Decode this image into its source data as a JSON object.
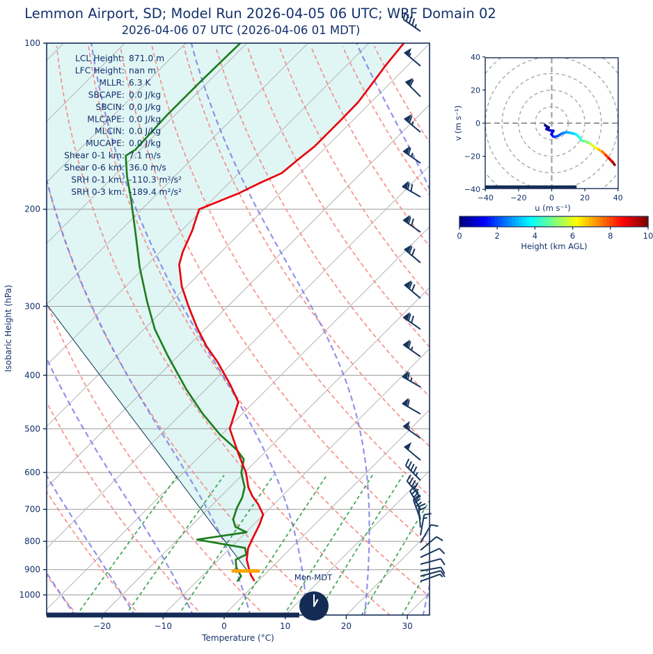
{
  "header": {
    "title": "Lemmon Airport, SD; Model Run 2026-04-05 06 UTC; WRF Domain 02",
    "subtitle": "2026-04-06 07 UTC  (2026-04-06 01 MDT)"
  },
  "colors": {
    "navy": "#142c55",
    "text_navy": "#13306b",
    "temperature": "#e8000b",
    "dewpoint": "#1e7d1e",
    "parcel": "#1f3d63",
    "fill_cyan": "#e0f6f5",
    "isotherm_gray": "#b3b3b3",
    "grid_gray": "#999999",
    "dry_adiabat": "#f5827d",
    "moist_adiabat": "#7577e3",
    "mixing_ratio": "#2f9e44",
    "lcl_bar_orange": "#ffa500",
    "barb_navy": "#16355d"
  },
  "skewt": {
    "xlabel": "Temperature (°C)",
    "ylabel": "Isobaric Height (hPa)",
    "x_ticks": [
      -20,
      -10,
      0,
      10,
      20,
      30
    ],
    "y_ticks": [
      100,
      200,
      300,
      400,
      500,
      600,
      700,
      800,
      900,
      1000
    ],
    "stats": [
      {
        "label": "LCL Height",
        "value": "871.0 m"
      },
      {
        "label": "LFC Height",
        "value": "nan m"
      },
      {
        "label": "MLLR",
        "value": "6.3 K"
      },
      {
        "label": "SBCAPE",
        "value": "0.0 J/kg"
      },
      {
        "label": "SBCIN",
        "value": "0.0 J/kg"
      },
      {
        "label": "MLCAPE",
        "value": "0.0 J/kg"
      },
      {
        "label": "MLCIN",
        "value": "0.0 J/kg"
      },
      {
        "label": "MUCAPE",
        "value": "0.0 J/kg"
      },
      {
        "label": "Shear 0-1 km",
        "value": "7.1 m/s"
      },
      {
        "label": "Shear 0-6 km",
        "value": "36.0 m/s"
      },
      {
        "label": "SRH 0-1 km",
        "value": "-110.3 m²/s²"
      },
      {
        "label": "SRH 0-3 km",
        "value": "-189.4 m²/s²"
      }
    ],
    "surface_bar": {
      "t_end": 12.3
    },
    "lcl_bar": {
      "p": 905,
      "t_from": -6.0,
      "t_to": -1.4
    },
    "wind_barbs": [
      {
        "p": 100,
        "kt": 45,
        "dir": 305
      },
      {
        "p": 110,
        "kt": 55,
        "dir": 310
      },
      {
        "p": 125,
        "kt": 60,
        "dir": 315
      },
      {
        "p": 145,
        "kt": 65,
        "dir": 310
      },
      {
        "p": 165,
        "kt": 65,
        "dir": 305
      },
      {
        "p": 190,
        "kt": 70,
        "dir": 300
      },
      {
        "p": 220,
        "kt": 70,
        "dir": 305
      },
      {
        "p": 250,
        "kt": 70,
        "dir": 310
      },
      {
        "p": 290,
        "kt": 70,
        "dir": 310
      },
      {
        "p": 330,
        "kt": 70,
        "dir": 305
      },
      {
        "p": 370,
        "kt": 65,
        "dir": 305
      },
      {
        "p": 420,
        "kt": 65,
        "dir": 300
      },
      {
        "p": 470,
        "kt": 60,
        "dir": 300
      },
      {
        "p": 520,
        "kt": 55,
        "dir": 305
      },
      {
        "p": 570,
        "kt": 50,
        "dir": 310
      },
      {
        "p": 620,
        "kt": 45,
        "dir": 315
      },
      {
        "p": 665,
        "kt": 45,
        "dir": 320
      },
      {
        "p": 700,
        "kt": 40,
        "dir": 330
      },
      {
        "p": 730,
        "kt": 30,
        "dir": 340
      },
      {
        "p": 755,
        "kt": 20,
        "dir": 355
      },
      {
        "p": 780,
        "kt": 15,
        "dir": 10
      },
      {
        "p": 805,
        "kt": 10,
        "dir": 30
      },
      {
        "p": 830,
        "kt": 10,
        "dir": 50
      },
      {
        "p": 855,
        "kt": 10,
        "dir": 65
      },
      {
        "p": 880,
        "kt": 10,
        "dir": 75
      },
      {
        "p": 905,
        "kt": 10,
        "dir": 80
      },
      {
        "p": 925,
        "kt": 8,
        "dir": 75
      },
      {
        "p": 945,
        "kt": 7,
        "dir": 70
      }
    ]
  },
  "hodograph": {
    "xlabel": "u (m s⁻¹)",
    "ylabel": "v (m s⁻¹)",
    "x_ticks": [
      -40,
      -20,
      0,
      20,
      40
    ],
    "y_ticks": [
      -40,
      -20,
      0,
      20,
      40
    ],
    "rings": [
      10,
      20,
      30,
      40,
      50
    ],
    "bar_u_range": [
      -40,
      15
    ]
  },
  "colorbar": {
    "label": "Height (km AGL)",
    "ticks": [
      0,
      2,
      4,
      6,
      8,
      10
    ],
    "min": 0,
    "max": 10
  },
  "clock": {
    "label": "Mon-MDT",
    "hour": 1,
    "minute": 0
  },
  "chart_data": [
    {
      "type": "line",
      "title": "Skew-T log-p sounding",
      "xlabel": "Temperature (°C)",
      "ylabel": "Isobaric Height (hPa)",
      "xlim": [
        -29,
        33.6
      ],
      "ylim": [
        1088,
        100
      ],
      "y_scale": "log",
      "series": [
        {
          "name": "temperature_degC_by_hPa",
          "points": [
            [
              100,
              -64.3
            ],
            [
              110,
              -63.6
            ],
            [
              119,
              -62.8
            ],
            [
              128,
              -62.1
            ],
            [
              138,
              -62.0
            ],
            [
              146,
              -62.0
            ],
            [
              154,
              -62.0
            ],
            [
              162,
              -62.5
            ],
            [
              172,
              -63.0
            ],
            [
              179,
              -64.9
            ],
            [
              187,
              -66.7
            ],
            [
              200,
              -70.6
            ],
            [
              219,
              -68.2
            ],
            [
              239,
              -66.3
            ],
            [
              252,
              -64.8
            ],
            [
              276,
              -60.8
            ],
            [
              299,
              -56.6
            ],
            [
              327,
              -51.7
            ],
            [
              354,
              -47.0
            ],
            [
              378,
              -42.6
            ],
            [
              415,
              -36.9
            ],
            [
              447,
              -32.6
            ],
            [
              500,
              -29.6
            ],
            [
              556,
              -24.0
            ],
            [
              600,
              -19.8
            ],
            [
              638,
              -17.0
            ],
            [
              662,
              -14.9
            ],
            [
              685,
              -12.6
            ],
            [
              715,
              -10.1
            ],
            [
              747,
              -9.0
            ],
            [
              790,
              -7.9
            ],
            [
              824,
              -7.0
            ],
            [
              863,
              -5.4
            ],
            [
              897,
              -3.5
            ],
            [
              922,
              -2.1
            ],
            [
              941,
              -0.8
            ]
          ]
        },
        {
          "name": "dewpoint_degC_by_hPa",
          "points": [
            [
              100,
              -91.1
            ],
            [
              117,
              -91.3
            ],
            [
              135,
              -91.3
            ],
            [
              156,
              -90.8
            ],
            [
              160,
              -91.4
            ],
            [
              174,
              -87.9
            ],
            [
              191,
              -83.6
            ],
            [
              221,
              -77.1
            ],
            [
              255,
              -70.8
            ],
            [
              294,
              -64.0
            ],
            [
              330,
              -58.2
            ],
            [
              367,
              -52.0
            ],
            [
              424,
              -43.2
            ],
            [
              469,
              -36.6
            ],
            [
              512,
              -30.3
            ],
            [
              546,
              -25.0
            ],
            [
              568,
              -22.3
            ],
            [
              601,
              -20.5
            ],
            [
              638,
              -17.6
            ],
            [
              666,
              -16.3
            ],
            [
              695,
              -15.5
            ],
            [
              730,
              -14.2
            ],
            [
              753,
              -12.6
            ],
            [
              770,
              -9.9
            ],
            [
              794,
              -16.8
            ],
            [
              822,
              -7.6
            ],
            [
              845,
              -6.3
            ],
            [
              863,
              -7.2
            ],
            [
              892,
              -5.8
            ],
            [
              925,
              -3.6
            ],
            [
              943,
              -3.4
            ]
          ]
        },
        {
          "name": "parcel_trace_degC_by_hPa",
          "points": [
            [
              297,
              -80.1
            ],
            [
              900,
              -3.8
            ]
          ]
        }
      ]
    },
    {
      "type": "scatter",
      "title": "Hodograph",
      "xlabel": "u (m s⁻¹)",
      "ylabel": "v (m s⁻¹)",
      "xlim": [
        -40,
        40
      ],
      "ylim": [
        -40,
        40
      ],
      "series": [
        {
          "name": "wind_u_v_heightkm",
          "points": [
            [
              -4,
              -1.2,
              0
            ],
            [
              -3,
              -2,
              0.1
            ],
            [
              -1.8,
              -2.6,
              0.2
            ],
            [
              -3.2,
              -3.6,
              0.4
            ],
            [
              -1,
              -4.4,
              0.6
            ],
            [
              1,
              -4.6,
              0.8
            ],
            [
              -0.2,
              -6.7,
              1.1
            ],
            [
              0.8,
              -8,
              1.4
            ],
            [
              1.9,
              -8.4,
              1.7
            ],
            [
              4,
              -7.6,
              2
            ],
            [
              6,
              -6.3,
              2.3
            ],
            [
              8.6,
              -5.5,
              2.7
            ],
            [
              11.6,
              -5.9,
              3.1
            ],
            [
              14.5,
              -6.7,
              3.5
            ],
            [
              16.6,
              -8.4,
              3.9
            ],
            [
              17.9,
              -10.5,
              4.3
            ],
            [
              20,
              -10.9,
              4.7
            ],
            [
              22.1,
              -11.8,
              5.1
            ],
            [
              24.2,
              -13,
              5.6
            ],
            [
              26.3,
              -14.7,
              6.1
            ],
            [
              28.4,
              -16,
              6.6
            ],
            [
              30.5,
              -17.2,
              7.2
            ],
            [
              32.6,
              -19.3,
              7.9
            ],
            [
              34.7,
              -21.4,
              8.6
            ],
            [
              36.8,
              -23.5,
              9.3
            ],
            [
              38,
              -25.2,
              10
            ]
          ]
        }
      ]
    }
  ]
}
